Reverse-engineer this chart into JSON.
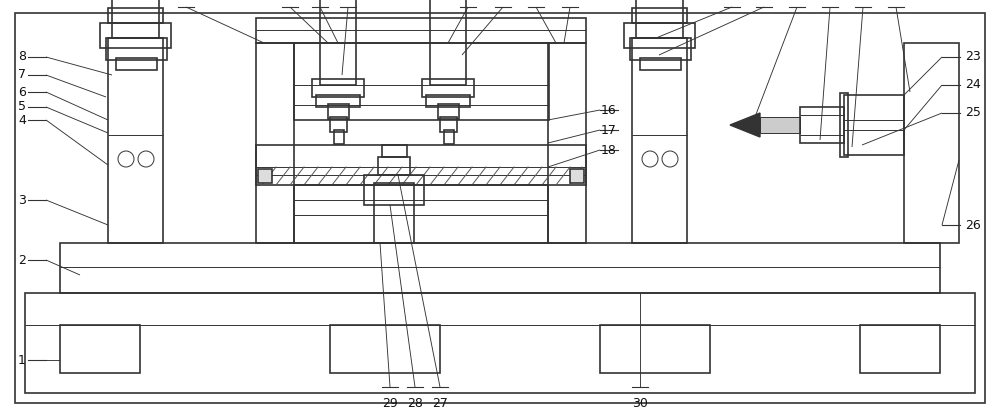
{
  "figure_width": 10.0,
  "figure_height": 4.15,
  "dpi": 100,
  "bg_color": "#ffffff",
  "lc": "#333333",
  "lw": 1.2,
  "tlw": 0.7,
  "alw": 0.65,
  "fs": 9.0,
  "xlim": [
    0,
    1000
  ],
  "ylim": [
    0,
    415
  ]
}
